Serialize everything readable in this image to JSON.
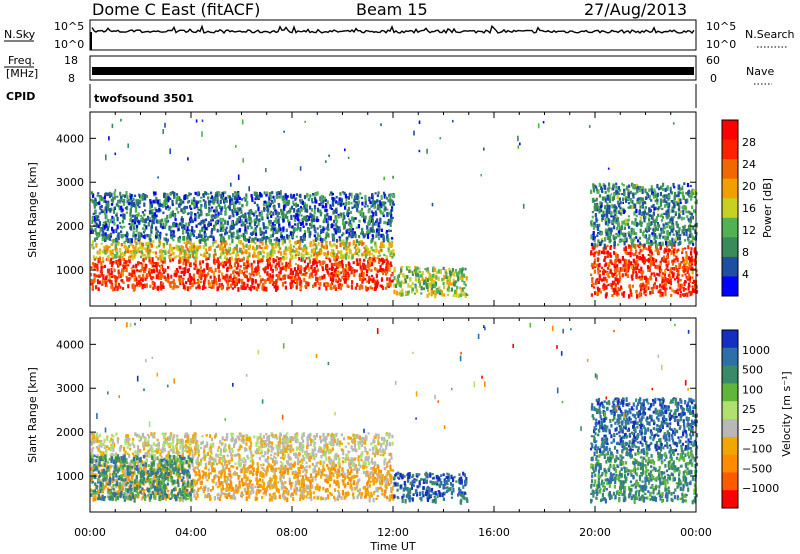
{
  "header": {
    "station": "Dome C East (fitACF)",
    "beam": "Beam 15",
    "date": "27/Aug/2013"
  },
  "strip_labels": {
    "nsky": "N.Sky",
    "nsearch": "N.Search",
    "freq_line1": "Freq.",
    "freq_line2": "[MHz]",
    "nave": "Nave",
    "cpid": "CPID",
    "cpid_value": "twofsound 3501",
    "noise_left_ticks": [
      "10^5",
      "10^0"
    ],
    "noise_right_ticks": [
      "10^5",
      "10^0"
    ],
    "freq_left_ticks": [
      "18",
      "8"
    ],
    "freq_right_ticks": [
      "60",
      "0"
    ]
  },
  "colors": {
    "power_scale": [
      "#0000ff",
      "#1f4fa0",
      "#3a8a5a",
      "#52b152",
      "#c8d020",
      "#f0a000",
      "#f06800",
      "#ff2000",
      "#ff0000"
    ],
    "velocity_scale": [
      "#1530c0",
      "#2f6fa8",
      "#3a8a6a",
      "#5fb63a",
      "#b0e070",
      "#b8b8b8",
      "#f0a800",
      "#ff8c00",
      "#ff5a00",
      "#ff0000"
    ]
  },
  "chart_data": [
    {
      "type": "heatmap",
      "title": "",
      "xlabel": "Time UT",
      "ylabel": "Slant Range [km]",
      "xticks": [
        "00:00",
        "04:00",
        "08:00",
        "12:00",
        "16:00",
        "20:00",
        "00:00"
      ],
      "yticks": [
        "1000",
        "2000",
        "3000",
        "4000"
      ],
      "xlim": [
        0,
        24
      ],
      "ylim": [
        180,
        4600
      ],
      "colorbar": {
        "label": "Power [dB]",
        "ticks": [
          "4",
          "8",
          "12",
          "16",
          "20",
          "24",
          "28"
        ],
        "range": [
          0,
          32
        ]
      },
      "data_regions": [
        {
          "t": [
            0.0,
            12.0
          ],
          "r": [
            600,
            1300
          ],
          "level": 28
        },
        {
          "t": [
            0.0,
            12.0
          ],
          "r": [
            1300,
            1700
          ],
          "level": 18
        },
        {
          "t": [
            0.0,
            12.0
          ],
          "r": [
            1700,
            2800
          ],
          "level": 6
        },
        {
          "t": [
            12.0,
            14.9
          ],
          "r": [
            450,
            1100
          ],
          "level": 14
        },
        {
          "t": [
            19.8,
            24.0
          ],
          "r": [
            450,
            1600
          ],
          "level": 28
        },
        {
          "t": [
            19.8,
            24.0
          ],
          "r": [
            1600,
            3000
          ],
          "level": 8
        }
      ]
    },
    {
      "type": "heatmap",
      "title": "",
      "xlabel": "Time UT",
      "ylabel": "Slant Range [km]",
      "xticks": [
        "00:00",
        "04:00",
        "08:00",
        "12:00",
        "16:00",
        "20:00",
        "00:00"
      ],
      "yticks": [
        "1000",
        "2000",
        "3000",
        "4000"
      ],
      "xlim": [
        0,
        24
      ],
      "ylim": [
        180,
        4600
      ],
      "colorbar": {
        "label": "Velocity [m s⁻¹]",
        "ticks": [
          "1000",
          "500",
          "100",
          "25",
          "−25",
          "−100",
          "−500",
          "−1000"
        ]
      },
      "data_regions": [
        {
          "t": [
            0.0,
            12.0
          ],
          "r": [
            500,
            1300
          ],
          "level": -100
        },
        {
          "t": [
            0.0,
            12.0
          ],
          "r": [
            1300,
            2000
          ],
          "level": -25
        },
        {
          "t": [
            0.0,
            4.0
          ],
          "r": [
            500,
            1500
          ],
          "level": 100
        },
        {
          "t": [
            12.0,
            14.9
          ],
          "r": [
            450,
            1100
          ],
          "level": 500
        },
        {
          "t": [
            19.8,
            24.0
          ],
          "r": [
            450,
            1600
          ],
          "level": 100
        },
        {
          "t": [
            19.8,
            24.0
          ],
          "r": [
            1600,
            2800
          ],
          "level": 500
        }
      ]
    }
  ]
}
